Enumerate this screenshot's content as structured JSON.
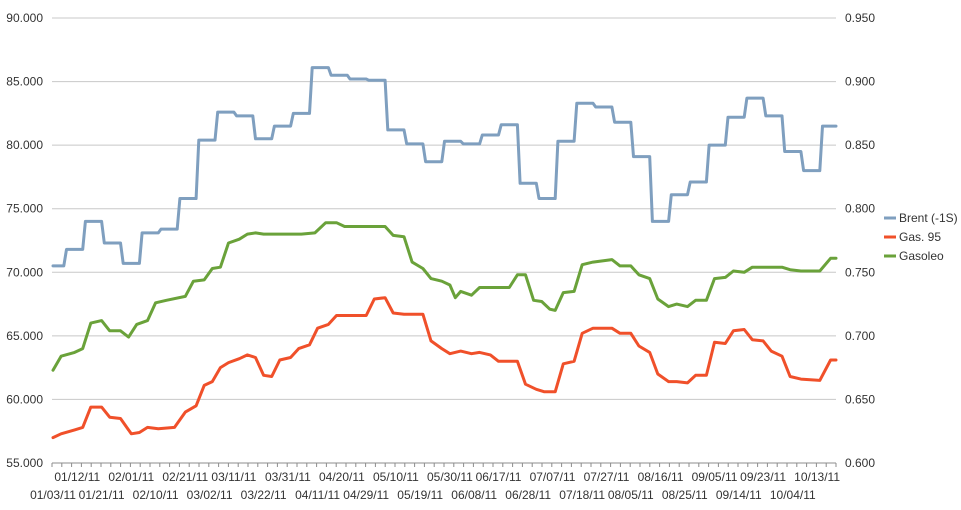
{
  "chart_data": {
    "type": "line",
    "title": "",
    "y_left": {
      "min": 55,
      "max": 90,
      "step": 5,
      "tick_labels": [
        "55.000",
        "60.000",
        "65.000",
        "70.000",
        "75.000",
        "80.000",
        "85.000",
        "90.000"
      ]
    },
    "y_right": {
      "min": 0.6,
      "max": 0.95,
      "step": 0.05,
      "tick_labels": [
        "0.600",
        "0.650",
        "0.700",
        "0.750",
        "0.800",
        "0.850",
        "0.900",
        "0.950"
      ]
    },
    "x_range": [
      "2011-01-03",
      "2011-10-20"
    ],
    "x_tick_labels_top": [
      "01/12/11",
      "02/01/11",
      "02/21/11",
      "03/11/11",
      "03/31/11",
      "04/20/11",
      "05/10/11",
      "05/30/11",
      "06/17/11",
      "07/07/11",
      "07/27/11",
      "08/16/11",
      "09/05/11",
      "09/23/11",
      "10/13/11"
    ],
    "x_tick_labels_bottom": [
      "01/03/11",
      "01/21/11",
      "02/10/11",
      "03/02/11",
      "03/22/11",
      "04/11/11",
      "04/29/11",
      "05/19/11",
      "06/08/11",
      "06/28/11",
      "07/18/11",
      "08/05/11",
      "08/25/11",
      "09/14/11",
      "10/04/11"
    ],
    "grid": "horizontal",
    "legend_position": "right",
    "series": [
      {
        "name": "Brent (-1S)",
        "axis": "left",
        "color": "#7f9fbf",
        "points": [
          [
            "2011-01-03",
            70.5
          ],
          [
            "2011-01-07",
            70.5
          ],
          [
            "2011-01-08",
            71.8
          ],
          [
            "2011-01-14",
            71.8
          ],
          [
            "2011-01-15",
            74.0
          ],
          [
            "2011-01-21",
            74.0
          ],
          [
            "2011-01-22",
            72.3
          ],
          [
            "2011-01-28",
            72.3
          ],
          [
            "2011-01-29",
            70.7
          ],
          [
            "2011-02-04",
            70.7
          ],
          [
            "2011-02-05",
            73.1
          ],
          [
            "2011-02-11",
            73.1
          ],
          [
            "2011-02-12",
            73.4
          ],
          [
            "2011-02-18",
            73.4
          ],
          [
            "2011-02-19",
            75.8
          ],
          [
            "2011-02-25",
            75.8
          ],
          [
            "2011-02-26",
            80.4
          ],
          [
            "2011-03-04",
            80.4
          ],
          [
            "2011-03-05",
            82.6
          ],
          [
            "2011-03-11",
            82.6
          ],
          [
            "2011-03-12",
            82.3
          ],
          [
            "2011-03-18",
            82.3
          ],
          [
            "2011-03-19",
            80.5
          ],
          [
            "2011-03-25",
            80.5
          ],
          [
            "2011-03-26",
            81.5
          ],
          [
            "2011-04-01",
            81.5
          ],
          [
            "2011-04-02",
            82.5
          ],
          [
            "2011-04-08",
            82.5
          ],
          [
            "2011-04-09",
            86.1
          ],
          [
            "2011-04-15",
            86.1
          ],
          [
            "2011-04-16",
            85.5
          ],
          [
            "2011-04-22",
            85.5
          ],
          [
            "2011-04-23",
            85.2
          ],
          [
            "2011-04-29",
            85.2
          ],
          [
            "2011-04-30",
            85.1
          ],
          [
            "2011-05-06",
            85.1
          ],
          [
            "2011-05-07",
            81.2
          ],
          [
            "2011-05-13",
            81.2
          ],
          [
            "2011-05-14",
            80.1
          ],
          [
            "2011-05-20",
            80.1
          ],
          [
            "2011-05-21",
            78.7
          ],
          [
            "2011-05-27",
            78.7
          ],
          [
            "2011-05-28",
            80.3
          ],
          [
            "2011-06-03",
            80.3
          ],
          [
            "2011-06-04",
            80.1
          ],
          [
            "2011-06-10",
            80.1
          ],
          [
            "2011-06-11",
            80.8
          ],
          [
            "2011-06-17",
            80.8
          ],
          [
            "2011-06-18",
            81.6
          ],
          [
            "2011-06-24",
            81.6
          ],
          [
            "2011-06-25",
            77.0
          ],
          [
            "2011-07-01",
            77.0
          ],
          [
            "2011-07-02",
            75.8
          ],
          [
            "2011-07-08",
            75.8
          ],
          [
            "2011-07-09",
            80.3
          ],
          [
            "2011-07-15",
            80.3
          ],
          [
            "2011-07-16",
            83.3
          ],
          [
            "2011-07-22",
            83.3
          ],
          [
            "2011-07-23",
            83.0
          ],
          [
            "2011-07-29",
            83.0
          ],
          [
            "2011-07-30",
            81.8
          ],
          [
            "2011-08-05",
            81.8
          ],
          [
            "2011-08-06",
            79.1
          ],
          [
            "2011-08-12",
            79.1
          ],
          [
            "2011-08-13",
            74.0
          ],
          [
            "2011-08-19",
            74.0
          ],
          [
            "2011-08-20",
            76.1
          ],
          [
            "2011-08-26",
            76.1
          ],
          [
            "2011-08-27",
            77.1
          ],
          [
            "2011-09-02",
            77.1
          ],
          [
            "2011-09-03",
            80.0
          ],
          [
            "2011-09-09",
            80.0
          ],
          [
            "2011-09-10",
            82.2
          ],
          [
            "2011-09-16",
            82.2
          ],
          [
            "2011-09-17",
            83.7
          ],
          [
            "2011-09-23",
            83.7
          ],
          [
            "2011-09-24",
            82.3
          ],
          [
            "2011-09-30",
            82.3
          ],
          [
            "2011-10-01",
            79.5
          ],
          [
            "2011-10-07",
            79.5
          ],
          [
            "2011-10-08",
            78.0
          ],
          [
            "2011-10-14",
            78.0
          ],
          [
            "2011-10-15",
            81.5
          ],
          [
            "2011-10-20",
            81.5
          ]
        ]
      },
      {
        "name": "Gas. 95",
        "axis": "left",
        "color": "#f0502a",
        "points": [
          [
            "2011-01-03",
            57.0
          ],
          [
            "2011-01-06",
            57.3
          ],
          [
            "2011-01-11",
            57.6
          ],
          [
            "2011-01-14",
            57.8
          ],
          [
            "2011-01-17",
            59.4
          ],
          [
            "2011-01-21",
            59.4
          ],
          [
            "2011-01-24",
            58.6
          ],
          [
            "2011-01-28",
            58.5
          ],
          [
            "2011-02-01",
            57.3
          ],
          [
            "2011-02-04",
            57.4
          ],
          [
            "2011-02-07",
            57.8
          ],
          [
            "2011-02-11",
            57.7
          ],
          [
            "2011-02-17",
            57.8
          ],
          [
            "2011-02-21",
            59.0
          ],
          [
            "2011-02-25",
            59.5
          ],
          [
            "2011-02-28",
            61.1
          ],
          [
            "2011-03-03",
            61.4
          ],
          [
            "2011-03-06",
            62.5
          ],
          [
            "2011-03-09",
            62.9
          ],
          [
            "2011-03-13",
            63.2
          ],
          [
            "2011-03-16",
            63.5
          ],
          [
            "2011-03-19",
            63.3
          ],
          [
            "2011-03-22",
            61.9
          ],
          [
            "2011-03-25",
            61.8
          ],
          [
            "2011-03-28",
            63.1
          ],
          [
            "2011-04-01",
            63.3
          ],
          [
            "2011-04-04",
            64.0
          ],
          [
            "2011-04-08",
            64.3
          ],
          [
            "2011-04-11",
            65.6
          ],
          [
            "2011-04-15",
            65.9
          ],
          [
            "2011-04-18",
            66.6
          ],
          [
            "2011-04-22",
            66.6
          ],
          [
            "2011-04-29",
            66.6
          ],
          [
            "2011-05-02",
            67.9
          ],
          [
            "2011-05-06",
            68.0
          ],
          [
            "2011-05-09",
            66.8
          ],
          [
            "2011-05-13",
            66.7
          ],
          [
            "2011-05-20",
            66.7
          ],
          [
            "2011-05-23",
            64.6
          ],
          [
            "2011-05-27",
            64.0
          ],
          [
            "2011-05-30",
            63.6
          ],
          [
            "2011-06-03",
            63.8
          ],
          [
            "2011-06-07",
            63.6
          ],
          [
            "2011-06-10",
            63.7
          ],
          [
            "2011-06-14",
            63.5
          ],
          [
            "2011-06-17",
            63.0
          ],
          [
            "2011-06-21",
            63.0
          ],
          [
            "2011-06-24",
            63.0
          ],
          [
            "2011-06-27",
            61.2
          ],
          [
            "2011-07-01",
            60.8
          ],
          [
            "2011-07-04",
            60.6
          ],
          [
            "2011-07-08",
            60.6
          ],
          [
            "2011-07-11",
            62.8
          ],
          [
            "2011-07-15",
            63.0
          ],
          [
            "2011-07-18",
            65.2
          ],
          [
            "2011-07-22",
            65.6
          ],
          [
            "2011-07-25",
            65.6
          ],
          [
            "2011-07-29",
            65.6
          ],
          [
            "2011-08-01",
            65.2
          ],
          [
            "2011-08-05",
            65.2
          ],
          [
            "2011-08-08",
            64.2
          ],
          [
            "2011-08-12",
            63.7
          ],
          [
            "2011-08-15",
            62.0
          ],
          [
            "2011-08-19",
            61.4
          ],
          [
            "2011-08-22",
            61.4
          ],
          [
            "2011-08-26",
            61.3
          ],
          [
            "2011-08-29",
            61.9
          ],
          [
            "2011-09-02",
            61.9
          ],
          [
            "2011-09-05",
            64.5
          ],
          [
            "2011-09-09",
            64.4
          ],
          [
            "2011-09-12",
            65.4
          ],
          [
            "2011-09-16",
            65.5
          ],
          [
            "2011-09-19",
            64.7
          ],
          [
            "2011-09-23",
            64.6
          ],
          [
            "2011-09-26",
            63.8
          ],
          [
            "2011-09-30",
            63.4
          ],
          [
            "2011-10-03",
            61.8
          ],
          [
            "2011-10-07",
            61.6
          ],
          [
            "2011-10-14",
            61.5
          ],
          [
            "2011-10-18",
            63.1
          ],
          [
            "2011-10-20",
            63.1
          ]
        ]
      },
      {
        "name": "Gasoleo",
        "axis": "left",
        "color": "#6aa23a",
        "points": [
          [
            "2011-01-03",
            62.3
          ],
          [
            "2011-01-06",
            63.4
          ],
          [
            "2011-01-11",
            63.7
          ],
          [
            "2011-01-14",
            64.0
          ],
          [
            "2011-01-17",
            66.0
          ],
          [
            "2011-01-21",
            66.2
          ],
          [
            "2011-01-24",
            65.4
          ],
          [
            "2011-01-28",
            65.4
          ],
          [
            "2011-01-31",
            64.9
          ],
          [
            "2011-02-03",
            65.9
          ],
          [
            "2011-02-07",
            66.2
          ],
          [
            "2011-02-10",
            67.6
          ],
          [
            "2011-02-14",
            67.8
          ],
          [
            "2011-02-21",
            68.1
          ],
          [
            "2011-02-24",
            69.3
          ],
          [
            "2011-02-28",
            69.4
          ],
          [
            "2011-03-03",
            70.3
          ],
          [
            "2011-03-06",
            70.4
          ],
          [
            "2011-03-09",
            72.3
          ],
          [
            "2011-03-13",
            72.6
          ],
          [
            "2011-03-16",
            73.0
          ],
          [
            "2011-03-19",
            73.1
          ],
          [
            "2011-03-22",
            73.0
          ],
          [
            "2011-03-29",
            73.0
          ],
          [
            "2011-04-05",
            73.0
          ],
          [
            "2011-04-10",
            73.1
          ],
          [
            "2011-04-14",
            73.9
          ],
          [
            "2011-04-18",
            73.9
          ],
          [
            "2011-04-21",
            73.6
          ],
          [
            "2011-05-01",
            73.6
          ],
          [
            "2011-05-06",
            73.6
          ],
          [
            "2011-05-09",
            72.9
          ],
          [
            "2011-05-13",
            72.8
          ],
          [
            "2011-05-16",
            70.8
          ],
          [
            "2011-05-20",
            70.3
          ],
          [
            "2011-05-23",
            69.5
          ],
          [
            "2011-05-27",
            69.3
          ],
          [
            "2011-05-30",
            69.0
          ],
          [
            "2011-06-01",
            68.0
          ],
          [
            "2011-06-03",
            68.5
          ],
          [
            "2011-06-07",
            68.2
          ],
          [
            "2011-06-10",
            68.8
          ],
          [
            "2011-06-17",
            68.8
          ],
          [
            "2011-06-21",
            68.8
          ],
          [
            "2011-06-24",
            69.8
          ],
          [
            "2011-06-27",
            69.8
          ],
          [
            "2011-06-30",
            67.8
          ],
          [
            "2011-07-03",
            67.7
          ],
          [
            "2011-07-06",
            67.1
          ],
          [
            "2011-07-08",
            67.0
          ],
          [
            "2011-07-11",
            68.4
          ],
          [
            "2011-07-15",
            68.5
          ],
          [
            "2011-07-18",
            70.6
          ],
          [
            "2011-07-22",
            70.8
          ],
          [
            "2011-07-29",
            71.0
          ],
          [
            "2011-08-01",
            70.5
          ],
          [
            "2011-08-05",
            70.5
          ],
          [
            "2011-08-08",
            69.8
          ],
          [
            "2011-08-12",
            69.5
          ],
          [
            "2011-08-15",
            67.9
          ],
          [
            "2011-08-19",
            67.3
          ],
          [
            "2011-08-22",
            67.5
          ],
          [
            "2011-08-26",
            67.3
          ],
          [
            "2011-08-29",
            67.8
          ],
          [
            "2011-09-02",
            67.8
          ],
          [
            "2011-09-05",
            69.5
          ],
          [
            "2011-09-09",
            69.6
          ],
          [
            "2011-09-12",
            70.1
          ],
          [
            "2011-09-16",
            70.0
          ],
          [
            "2011-09-19",
            70.4
          ],
          [
            "2011-09-23",
            70.4
          ],
          [
            "2011-09-30",
            70.4
          ],
          [
            "2011-10-03",
            70.2
          ],
          [
            "2011-10-07",
            70.1
          ],
          [
            "2011-10-14",
            70.1
          ],
          [
            "2011-10-18",
            71.1
          ],
          [
            "2011-10-20",
            71.1
          ]
        ]
      }
    ]
  }
}
